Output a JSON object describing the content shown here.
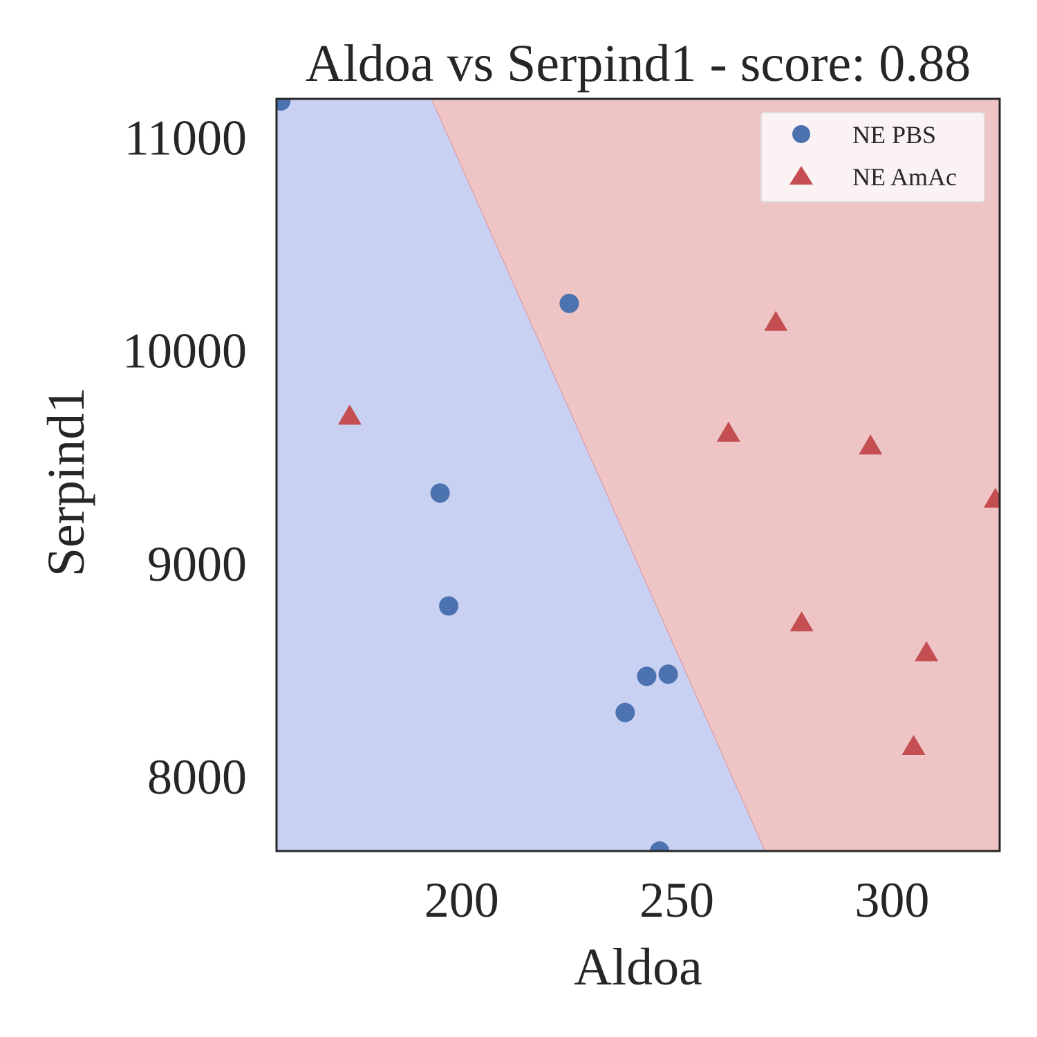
{
  "chart_data": {
    "type": "scatter",
    "title": "Aldoa vs Serpind1 - score: 0.88",
    "xlabel": "Aldoa",
    "ylabel": "Serpind1",
    "xlim": [
      157,
      325
    ],
    "ylim": [
      7650,
      11180
    ],
    "xticks": [
      200,
      250,
      300
    ],
    "yticks": [
      8000,
      9000,
      10000,
      11000
    ],
    "grid": false,
    "legend_position": "top-right",
    "decision_boundary": {
      "points": [
        [
          193,
          11180
        ],
        [
          270.5,
          7650
        ]
      ],
      "left_color": "#c8d1f1",
      "right_color": "#eec4c4"
    },
    "series": [
      {
        "name": "NE PBS",
        "marker": "circle",
        "color": "#4c72b0",
        "points": [
          [
            158,
            11170
          ],
          [
            225,
            10220
          ],
          [
            195,
            9330
          ],
          [
            197,
            8800
          ],
          [
            243,
            8470
          ],
          [
            248,
            8480
          ],
          [
            238,
            8300
          ],
          [
            246,
            7650
          ]
        ]
      },
      {
        "name": "NE AmAc",
        "marker": "triangle",
        "color": "#c44e52",
        "points": [
          [
            174,
            9690
          ],
          [
            262,
            9610
          ],
          [
            273,
            10130
          ],
          [
            295,
            9550
          ],
          [
            324,
            9300
          ],
          [
            279,
            8720
          ],
          [
            308,
            8580
          ],
          [
            305,
            8140
          ]
        ]
      }
    ]
  }
}
